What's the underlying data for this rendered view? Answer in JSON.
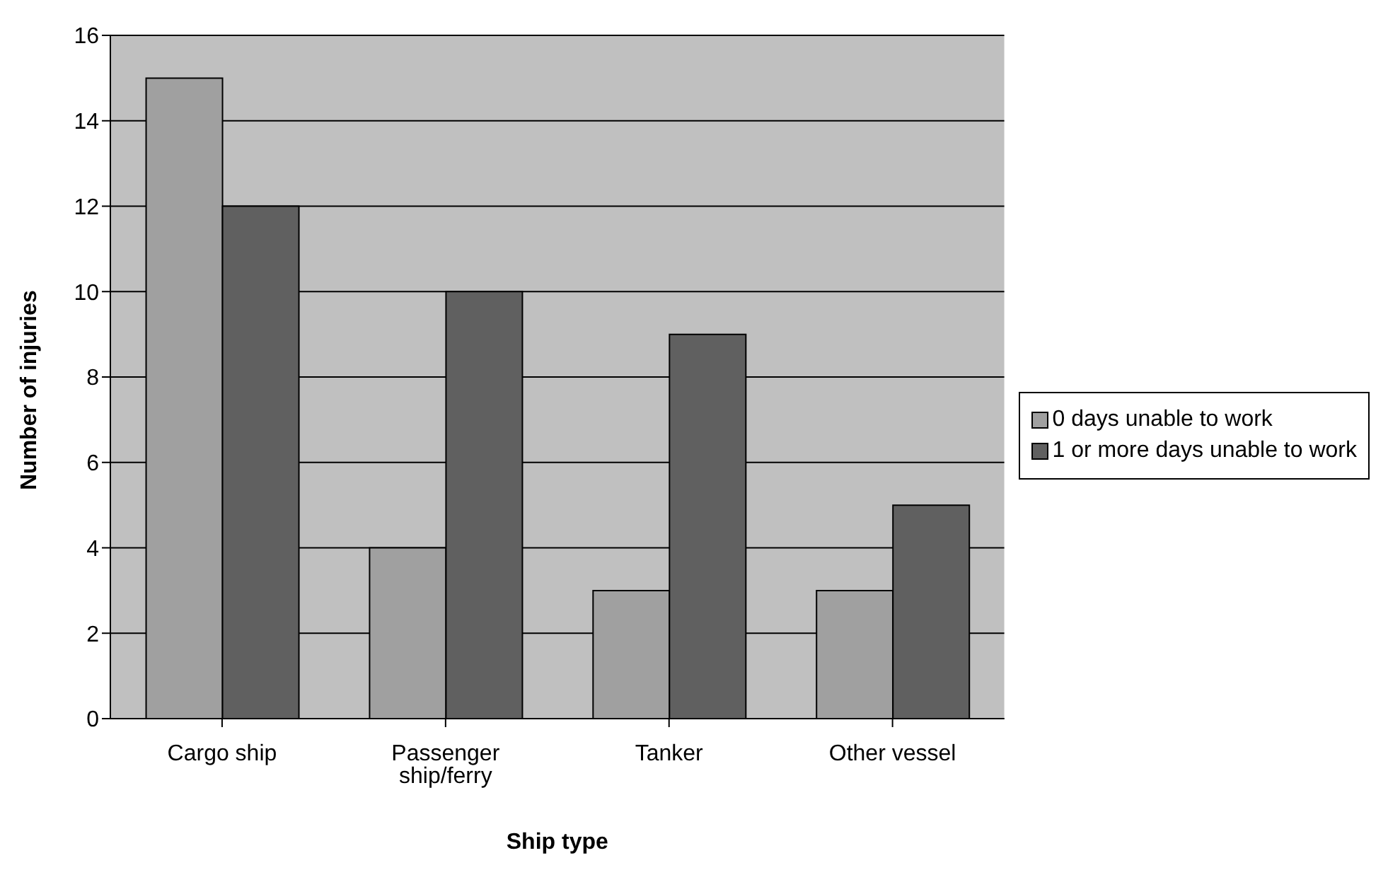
{
  "chart_data": {
    "type": "bar",
    "xlabel": "Ship type",
    "ylabel": "Number of injuries",
    "categories": [
      "Cargo ship",
      "Passenger ship/ferry",
      "Tanker",
      "Other vessel"
    ],
    "series": [
      {
        "name": "0 days unable to work",
        "color": "#a0a0a0",
        "values": [
          15,
          4,
          3,
          3
        ]
      },
      {
        "name": "1 or more days unable to work",
        "color": "#606060",
        "values": [
          12,
          10,
          9,
          5
        ]
      }
    ],
    "ylim": [
      0,
      16
    ],
    "yticks": [
      0,
      2,
      4,
      6,
      8,
      10,
      12,
      14,
      16
    ],
    "grid": "y",
    "legend": "right"
  }
}
